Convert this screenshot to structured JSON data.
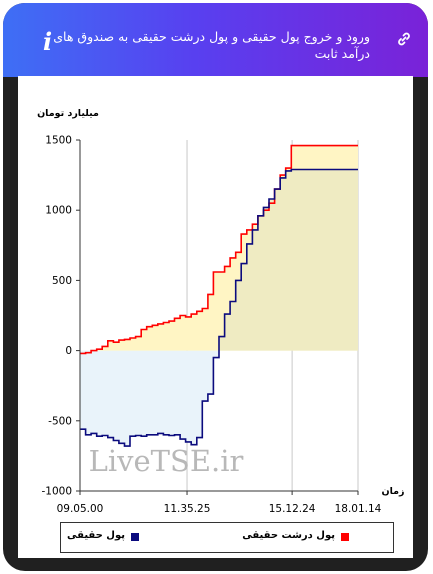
{
  "header": {
    "title": "ورود و خروج پول حقیقی و پول درشت حقیقی به صندوق های درآمد ثابت",
    "info_glyph": "i",
    "link_icon": "link-icon"
  },
  "watermark": "LiveTSE.ir",
  "chart_data": {
    "type": "area",
    "ylabel": "میلیارد تومان",
    "xlabel": "زمان",
    "ylim": [
      -1000,
      1500
    ],
    "yticks": [
      "1500",
      "1000",
      "500",
      "0",
      "-500",
      "-1000"
    ],
    "ytick_values": [
      1500,
      1000,
      500,
      0,
      -500,
      -1000
    ],
    "xtick_labels": [
      "09.05.00",
      "11.35.25",
      "15.12.24",
      "18.01.14"
    ],
    "xtick_positions": [
      0,
      0.385,
      0.763,
      1.0
    ],
    "grid": "vertical",
    "legend_position": "bottom",
    "series": [
      {
        "name": "پول درشت حقیقی",
        "color": "#ff0000",
        "fill": "#fff5c4",
        "x": [
          0,
          0.02,
          0.04,
          0.06,
          0.08,
          0.1,
          0.12,
          0.14,
          0.16,
          0.18,
          0.2,
          0.22,
          0.24,
          0.26,
          0.28,
          0.3,
          0.32,
          0.34,
          0.36,
          0.38,
          0.4,
          0.42,
          0.44,
          0.46,
          0.48,
          0.5,
          0.52,
          0.54,
          0.56,
          0.58,
          0.6,
          0.62,
          0.64,
          0.66,
          0.68,
          0.7,
          0.72,
          0.74,
          0.76,
          0.78,
          1.0
        ],
        "values": [
          -20,
          -15,
          0,
          10,
          30,
          70,
          60,
          75,
          80,
          90,
          100,
          150,
          170,
          180,
          190,
          200,
          210,
          230,
          250,
          240,
          260,
          280,
          300,
          400,
          560,
          560,
          600,
          660,
          700,
          830,
          860,
          900,
          960,
          1000,
          1050,
          1150,
          1250,
          1300,
          1460,
          1460,
          1460
        ]
      },
      {
        "name": "پول حقیقی",
        "color": "#0b0b7e",
        "fill_positive": "#efebc2",
        "fill_negative": "#e9f3fa",
        "x": [
          0,
          0.02,
          0.04,
          0.06,
          0.08,
          0.1,
          0.12,
          0.14,
          0.16,
          0.18,
          0.2,
          0.22,
          0.24,
          0.26,
          0.28,
          0.3,
          0.32,
          0.34,
          0.36,
          0.38,
          0.4,
          0.42,
          0.44,
          0.46,
          0.48,
          0.5,
          0.52,
          0.54,
          0.56,
          0.58,
          0.6,
          0.62,
          0.64,
          0.66,
          0.68,
          0.7,
          0.72,
          0.74,
          0.76,
          0.78,
          1.0
        ],
        "values": [
          -560,
          -600,
          -590,
          -610,
          -605,
          -620,
          -640,
          -660,
          -680,
          -610,
          -605,
          -610,
          -600,
          -600,
          -590,
          -600,
          -605,
          -600,
          -630,
          -650,
          -670,
          -620,
          -360,
          -310,
          -50,
          100,
          260,
          350,
          500,
          620,
          760,
          860,
          960,
          1020,
          1080,
          1150,
          1230,
          1280,
          1290,
          1290,
          1290
        ]
      }
    ]
  }
}
